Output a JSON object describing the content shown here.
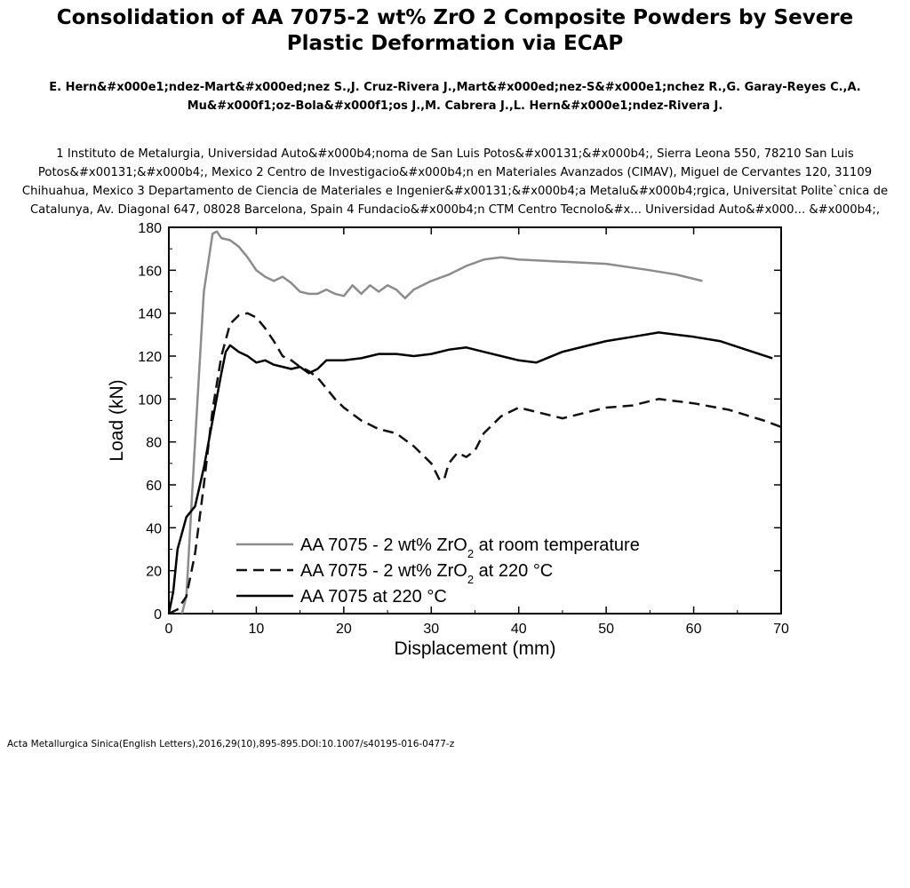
{
  "header": {
    "title": "Consolidation of AA 7075-2 wt% ZrO 2 Composite Powders by Severe Plastic Deformation via ECAP",
    "authors": "E. Hern&#x000e1;ndez-Mart&#x000ed;nez S.,J. Cruz-Rivera J.,Mart&#x000ed;nez-S&#x000e1;nchez R.,G. Garay-Reyes C.,A. Mu&#x000f1;oz-Bola&#x000f1;os J.,M. Cabrera J.,L. Hern&#x000e1;ndez-Rivera J.",
    "affiliations": "1 Instituto de Metalurgia, Universidad Auto&#x000b4;noma de San Luis Potos&#x00131;&#x000b4;, Sierra Leona 550, 78210 San Luis Potos&#x00131;&#x000b4;, Mexico 2 Centro de Investigacio&#x000b4;n en Materiales Avanzados (CIMAV), Miguel de Cervantes 120, 31109 Chihuahua, Mexico 3 Departamento de Ciencia de Materiales e Ingenier&#x00131;&#x000b4;a Metalu&#x000b4;rgica, Universitat Polite`cnica de Catalunya, Av. Diagonal 647, 08028 Barcelona, Spain 4 Fundacio&#x000b4;n CTM Centro Tecnolo&#x... Universidad Auto&#x000... &#x000b4;, Mexico;"
  },
  "footer": {
    "citation": "Acta Metallurgica Sinica(English Letters),2016,29(10),895-895.DOI:10.1007/s40195-016-0477-z"
  },
  "chart_data": {
    "type": "line",
    "title": "",
    "xlabel": "Displacement (mm)",
    "ylabel": "Load (kN)",
    "xlim": [
      0,
      70
    ],
    "ylim": [
      0,
      180
    ],
    "xticks": [
      0,
      10,
      20,
      30,
      40,
      50,
      60,
      70
    ],
    "yticks": [
      0,
      20,
      40,
      60,
      80,
      100,
      120,
      140,
      160,
      180
    ],
    "grid": false,
    "legend_position": "bottom-center",
    "series": [
      {
        "name": "AA 7075 - 2 wt% ZrO2 at room temperature",
        "color": "#8c8c8c",
        "style": "solid",
        "x": [
          1.5,
          2,
          3,
          4,
          5,
          5.5,
          6,
          7,
          8,
          9,
          10,
          11,
          12,
          13,
          14,
          15,
          16,
          17,
          18,
          19,
          20,
          21,
          22,
          23,
          24,
          25,
          26,
          27,
          28,
          29,
          30,
          32,
          34,
          36,
          38,
          40,
          45,
          50,
          55,
          58,
          61
        ],
        "y": [
          0,
          8,
          80,
          150,
          177,
          178,
          175,
          174,
          171,
          166,
          160,
          157,
          155,
          157,
          154,
          150,
          149,
          149,
          151,
          149,
          148,
          153,
          149,
          153,
          150,
          153,
          151,
          147,
          151,
          153,
          155,
          158,
          162,
          165,
          166,
          165,
          164,
          163,
          160,
          158,
          155
        ]
      },
      {
        "name": "AA 7075 - 2 wt% ZrO2 at 220 °C",
        "color": "#111111",
        "style": "dashed",
        "x": [
          0,
          1,
          2,
          3,
          4,
          5,
          6,
          7,
          8,
          9,
          10,
          11,
          12,
          13,
          14,
          15,
          16,
          17,
          18,
          19,
          20,
          22,
          24,
          26,
          28,
          30,
          31,
          31.5,
          32,
          33,
          34,
          35,
          36,
          38,
          40,
          42,
          45,
          48,
          50,
          53,
          56,
          60,
          64,
          68,
          70
        ],
        "y": [
          0,
          2,
          8,
          28,
          60,
          95,
          120,
          135,
          139,
          140,
          138,
          133,
          127,
          120,
          118,
          115,
          113,
          110,
          105,
          100,
          96,
          90,
          86,
          84,
          78,
          70,
          62,
          63,
          70,
          75,
          73,
          76,
          84,
          92,
          96,
          94,
          91,
          94,
          96,
          97,
          100,
          98,
          95,
          90,
          87
        ]
      },
      {
        "name": "AA 7075 at 220 °C",
        "color": "#000000",
        "style": "solid",
        "x": [
          0,
          0.5,
          1,
          2,
          3,
          4,
          5,
          6,
          6.5,
          7,
          8,
          9,
          10,
          11,
          12,
          13,
          14,
          15,
          16,
          17,
          18,
          20,
          22,
          24,
          26,
          28,
          30,
          32,
          34,
          36,
          38,
          40,
          42,
          45,
          48,
          50,
          53,
          56,
          60,
          63,
          66,
          69
        ],
        "y": [
          0,
          10,
          30,
          45,
          50,
          68,
          90,
          112,
          122,
          125,
          122,
          120,
          117,
          118,
          116,
          115,
          114,
          115,
          112,
          114,
          118,
          118,
          119,
          121,
          121,
          120,
          121,
          123,
          124,
          122,
          120,
          118,
          117,
          122,
          125,
          127,
          129,
          131,
          129,
          127,
          123,
          119
        ]
      }
    ],
    "legend": {
      "entries": [
        {
          "prefix": "AA 7075 - 2 wt% ZrO",
          "sub": "2",
          "suffix": " at  room  temperature"
        },
        {
          "prefix": "AA 7075 - 2 wt% ZrO",
          "sub": "2",
          "suffix": " at 220 °C"
        },
        {
          "prefix": "AA 7075 at 220 °C",
          "sub": "",
          "suffix": ""
        }
      ]
    }
  }
}
